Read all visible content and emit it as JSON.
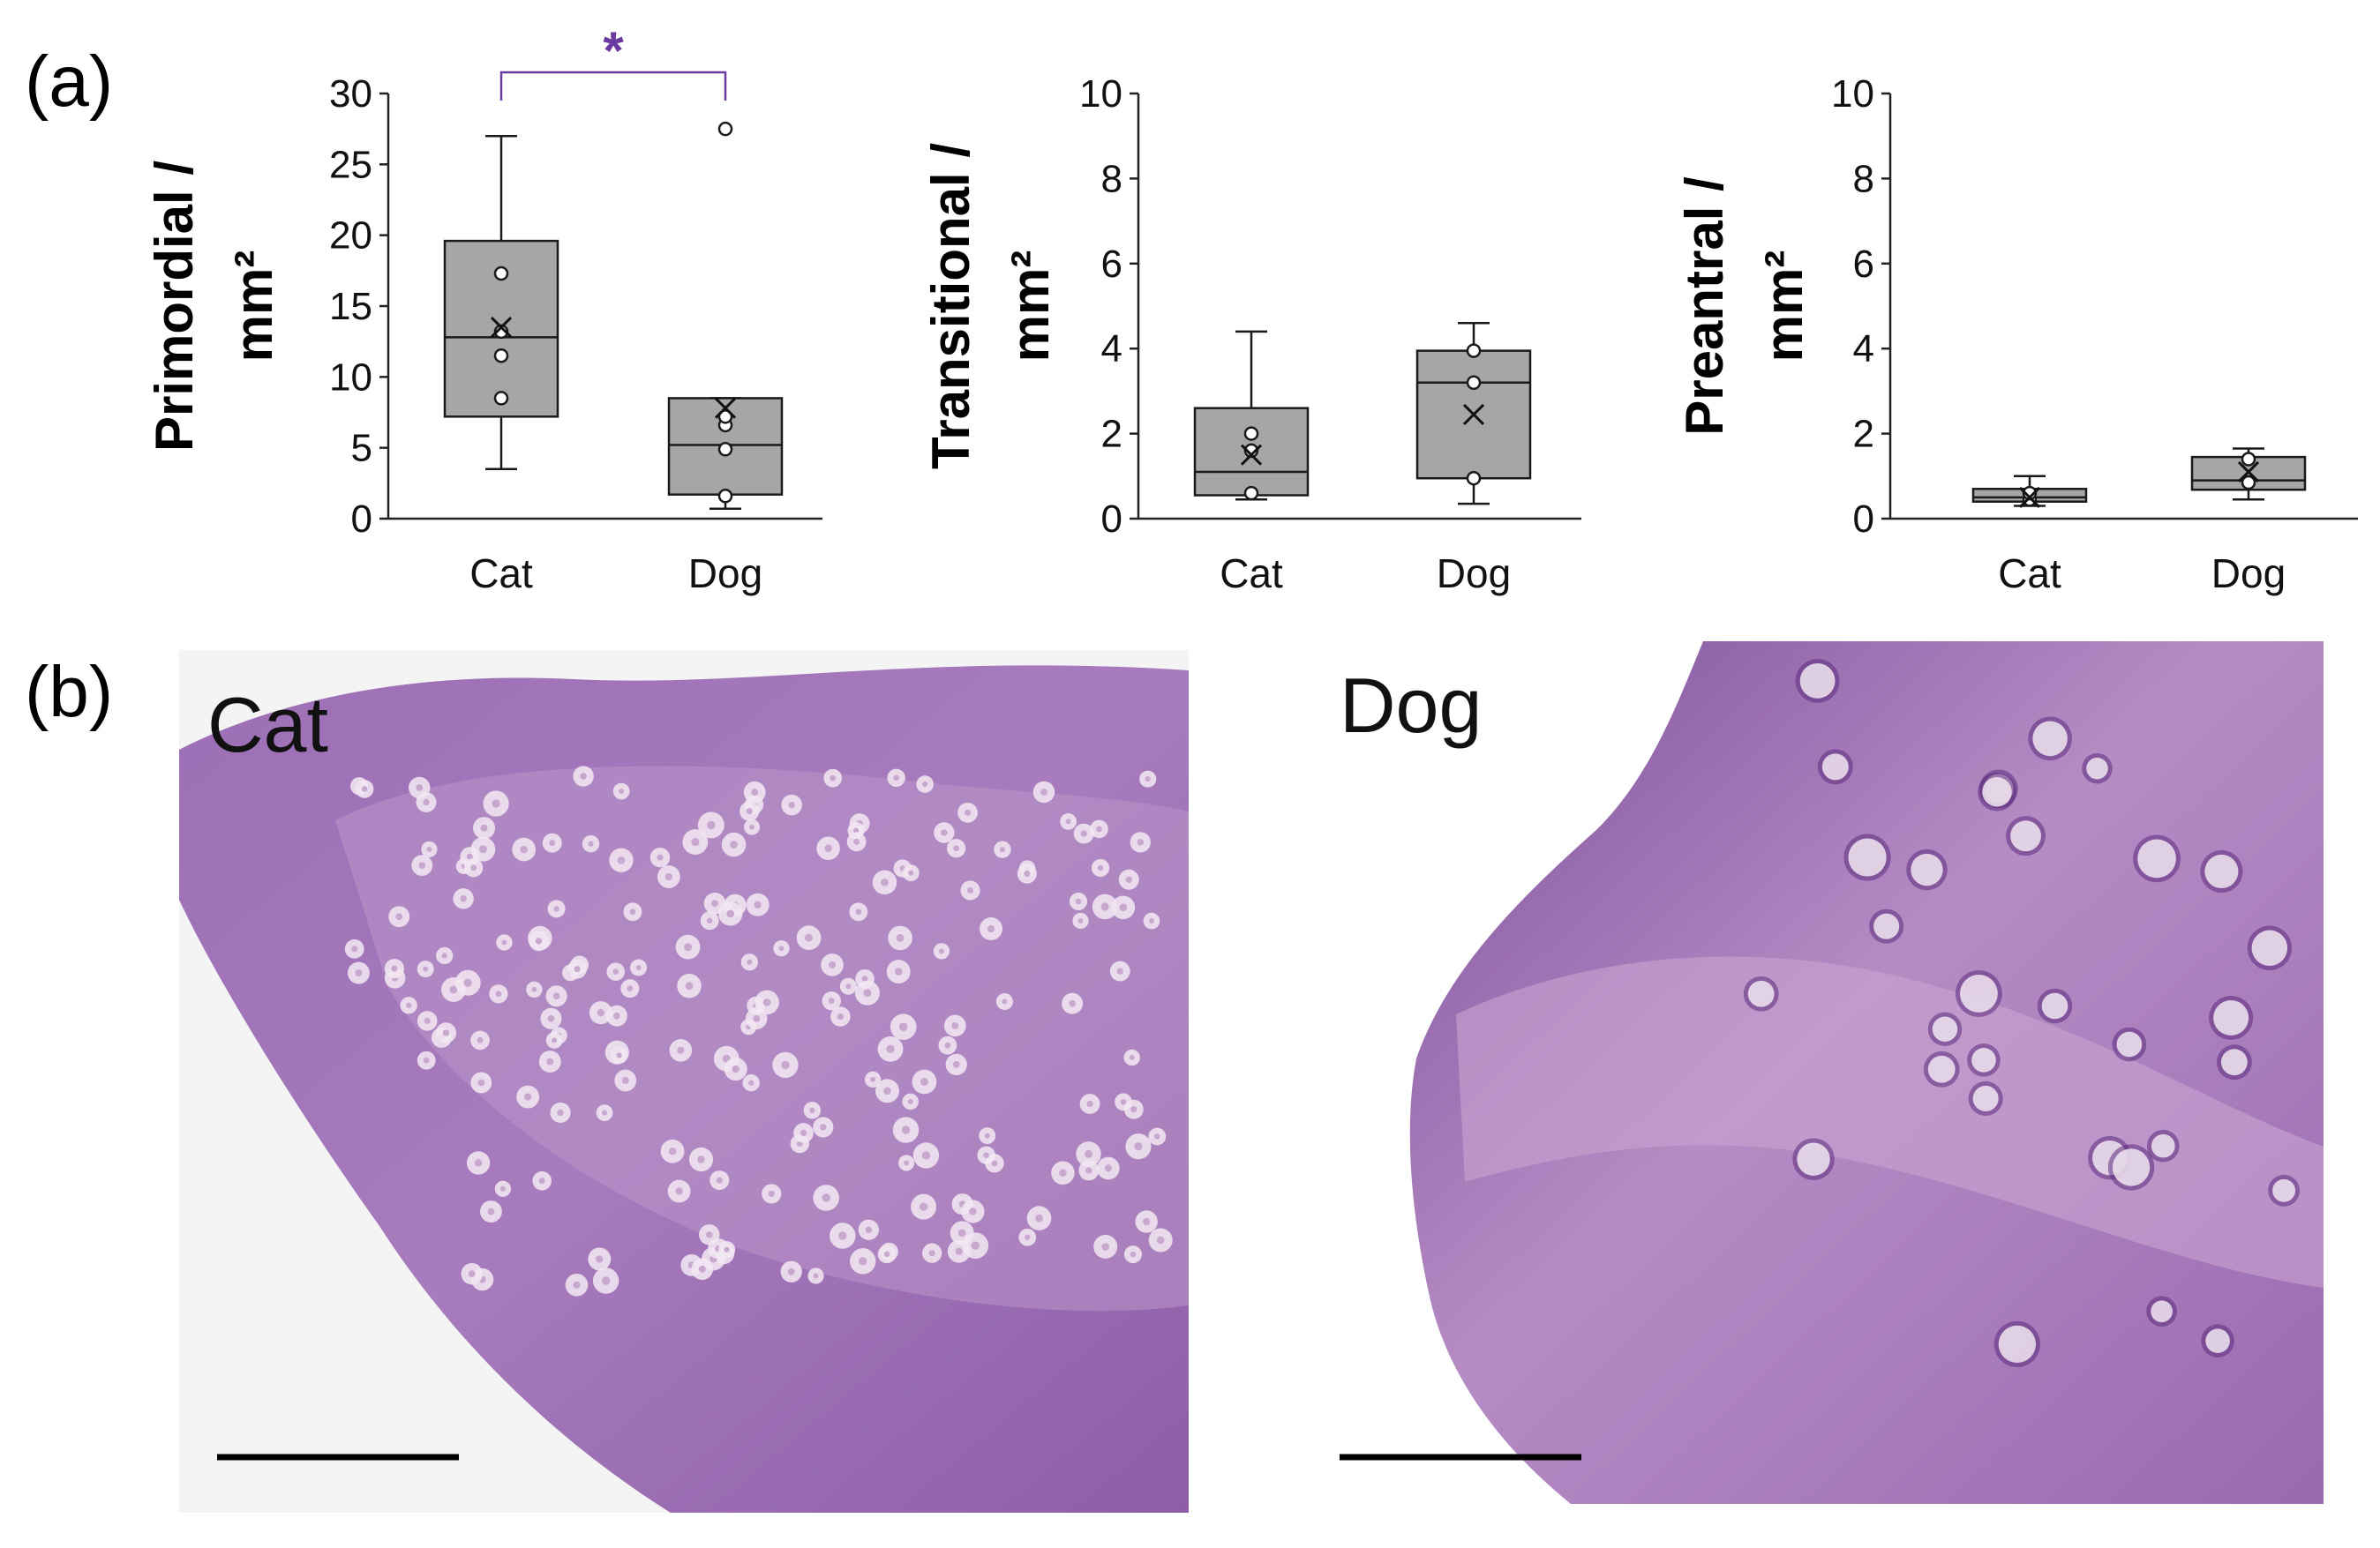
{
  "panel_a_label": "(a)",
  "panel_b_label": "(b)",
  "colors": {
    "box_fill": "#a6a6a6",
    "box_stroke": "#1a1a1a",
    "significance": "#6b3aa0",
    "tissue_light": "#b892c8",
    "tissue_dark": "#6f3f8e",
    "oocyte": "#f1e6f1"
  },
  "chart_data": [
    {
      "type": "box",
      "ylabel_line1": "Primordial /",
      "ylabel_line2": "mm²",
      "ylim": [
        0,
        30
      ],
      "yticks": [
        "0",
        "5",
        "10",
        "15",
        "20",
        "25",
        "30"
      ],
      "categories": [
        "Cat",
        "Dog"
      ],
      "boxes": [
        {
          "category": "Cat",
          "whisker_low": 3.5,
          "q1": 7.2,
          "median": 12.8,
          "q3": 19.6,
          "whisker_high": 27.0,
          "mean": 13.5,
          "points": [
            8.5,
            11.5,
            13.2,
            17.3
          ]
        },
        {
          "category": "Dog",
          "whisker_low": 0.7,
          "q1": 1.7,
          "median": 5.2,
          "q3": 8.5,
          "whisker_high": 8.5,
          "mean": 7.8,
          "points": [
            1.6,
            4.9,
            6.6,
            7.2,
            27.5
          ]
        }
      ],
      "significance": {
        "from": "Cat",
        "to": "Dog",
        "label": "*"
      }
    },
    {
      "type": "box",
      "ylabel_line1": "Transitional /",
      "ylabel_line2": "mm²",
      "ylim": [
        0,
        10
      ],
      "yticks": [
        "0",
        "2",
        "4",
        "6",
        "8",
        "10"
      ],
      "categories": [
        "Cat",
        "Dog"
      ],
      "boxes": [
        {
          "category": "Cat",
          "whisker_low": 0.45,
          "q1": 0.55,
          "median": 1.1,
          "q3": 2.6,
          "whisker_high": 4.4,
          "mean": 1.5,
          "points": [
            0.6,
            1.6,
            2.0
          ]
        },
        {
          "category": "Dog",
          "whisker_low": 0.35,
          "q1": 0.95,
          "median": 3.2,
          "q3": 3.95,
          "whisker_high": 4.6,
          "mean": 2.45,
          "points": [
            0.95,
            3.2,
            3.95
          ]
        }
      ],
      "significance": null
    },
    {
      "type": "box",
      "ylabel_line1": "Preantral /",
      "ylabel_line2": "mm²",
      "ylim": [
        0,
        10
      ],
      "yticks": [
        "0",
        "2",
        "4",
        "6",
        "8",
        "10"
      ],
      "categories": [
        "Cat",
        "Dog"
      ],
      "boxes": [
        {
          "category": "Cat",
          "whisker_low": 0.3,
          "q1": 0.4,
          "median": 0.5,
          "q3": 0.7,
          "whisker_high": 1.0,
          "mean": 0.5,
          "points": [
            0.45,
            0.6
          ]
        },
        {
          "category": "Dog",
          "whisker_low": 0.45,
          "q1": 0.68,
          "median": 0.9,
          "q3": 1.45,
          "whisker_high": 1.65,
          "mean": 1.1,
          "points": [
            0.85,
            1.4
          ]
        }
      ],
      "significance": null
    }
  ],
  "micrographs": [
    {
      "label": "Cat"
    },
    {
      "label": "Dog"
    }
  ]
}
